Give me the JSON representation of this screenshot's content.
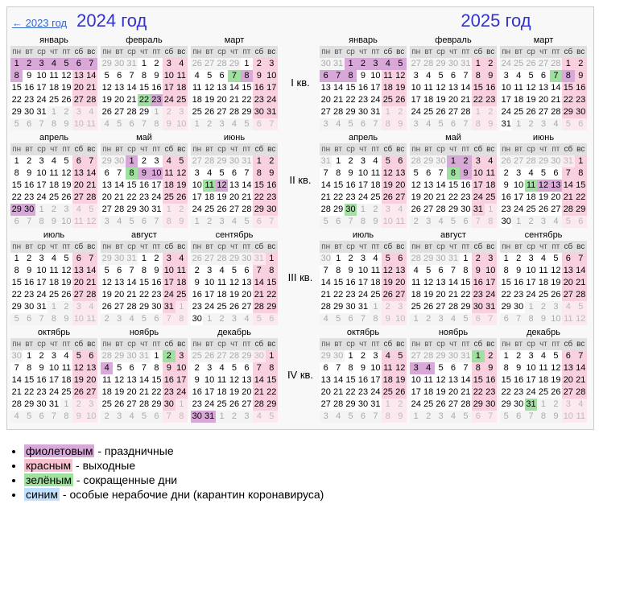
{
  "prev_link": "← 2023 год",
  "year_labels": [
    "2024 год",
    "2025 год"
  ],
  "weekday_headers": [
    "пн",
    "вт",
    "ср",
    "чт",
    "пт",
    "сб",
    "вс"
  ],
  "quarter_labels": [
    "I кв.",
    "II кв.",
    "III кв.",
    "IV кв."
  ],
  "legend": {
    "violet_word": "фиолетовым",
    "violet_rest": " - праздничные",
    "red_word": "красным",
    "red_rest": " - выходные",
    "green_word": "зелёным",
    "green_rest": " - сокращенные дни",
    "blue_word": "синим",
    "blue_rest": " - особые нерабочие дни (карантин коронавируса)"
  },
  "years": [
    {
      "year": 2024,
      "months": [
        {
          "name": "январь",
          "firstDow": 1,
          "days": 31,
          "prevDays": 31,
          "holidays": [
            1,
            2,
            3,
            4,
            5,
            6,
            7,
            8
          ],
          "short": []
        },
        {
          "name": "февраль",
          "firstDow": 4,
          "days": 29,
          "prevDays": 31,
          "holidays": [
            23
          ],
          "short": [
            22
          ]
        },
        {
          "name": "март",
          "firstDow": 5,
          "days": 31,
          "prevDays": 29,
          "holidays": [
            8
          ],
          "short": [
            7
          ]
        },
        {
          "name": "апрель",
          "firstDow": 1,
          "days": 30,
          "prevDays": 31,
          "holidays": [
            29,
            30
          ],
          "short": []
        },
        {
          "name": "май",
          "firstDow": 3,
          "days": 31,
          "prevDays": 30,
          "holidays": [
            1,
            9,
            10
          ],
          "short": [
            8
          ]
        },
        {
          "name": "июнь",
          "firstDow": 6,
          "days": 30,
          "prevDays": 31,
          "holidays": [
            12
          ],
          "short": [
            11
          ]
        },
        {
          "name": "июль",
          "firstDow": 1,
          "days": 31,
          "prevDays": 30,
          "holidays": [],
          "short": []
        },
        {
          "name": "август",
          "firstDow": 4,
          "days": 31,
          "prevDays": 31,
          "holidays": [],
          "short": []
        },
        {
          "name": "сентябрь",
          "firstDow": 7,
          "days": 30,
          "prevDays": 31,
          "holidays": [],
          "short": []
        },
        {
          "name": "октябрь",
          "firstDow": 2,
          "days": 31,
          "prevDays": 30,
          "holidays": [],
          "short": []
        },
        {
          "name": "ноябрь",
          "firstDow": 5,
          "days": 30,
          "prevDays": 31,
          "holidays": [
            4
          ],
          "short": [
            2
          ]
        },
        {
          "name": "декабрь",
          "firstDow": 7,
          "days": 31,
          "prevDays": 30,
          "holidays": [
            30,
            31
          ],
          "short": []
        }
      ]
    },
    {
      "year": 2025,
      "months": [
        {
          "name": "январь",
          "firstDow": 3,
          "days": 31,
          "prevDays": 31,
          "holidays": [
            1,
            2,
            3,
            4,
            5,
            6,
            7,
            8
          ],
          "short": []
        },
        {
          "name": "февраль",
          "firstDow": 6,
          "days": 28,
          "prevDays": 31,
          "holidays": [],
          "short": []
        },
        {
          "name": "март",
          "firstDow": 6,
          "days": 31,
          "prevDays": 28,
          "holidays": [
            8
          ],
          "short": [
            7
          ]
        },
        {
          "name": "апрель",
          "firstDow": 2,
          "days": 30,
          "prevDays": 31,
          "holidays": [],
          "short": [
            30
          ]
        },
        {
          "name": "май",
          "firstDow": 4,
          "days": 31,
          "prevDays": 30,
          "holidays": [
            1,
            2,
            9
          ],
          "short": [
            8
          ]
        },
        {
          "name": "июнь",
          "firstDow": 7,
          "days": 30,
          "prevDays": 31,
          "holidays": [
            12,
            13
          ],
          "short": [
            11
          ]
        },
        {
          "name": "июль",
          "firstDow": 2,
          "days": 31,
          "prevDays": 30,
          "holidays": [],
          "short": []
        },
        {
          "name": "август",
          "firstDow": 5,
          "days": 31,
          "prevDays": 31,
          "holidays": [],
          "short": []
        },
        {
          "name": "сентябрь",
          "firstDow": 1,
          "days": 30,
          "prevDays": 31,
          "holidays": [],
          "short": []
        },
        {
          "name": "октябрь",
          "firstDow": 3,
          "days": 31,
          "prevDays": 30,
          "holidays": [],
          "short": []
        },
        {
          "name": "ноябрь",
          "firstDow": 6,
          "days": 30,
          "prevDays": 31,
          "holidays": [
            3,
            4
          ],
          "short": [
            1
          ]
        },
        {
          "name": "декабрь",
          "firstDow": 1,
          "days": 31,
          "prevDays": 30,
          "holidays": [],
          "short": [
            31
          ]
        }
      ]
    }
  ],
  "colors": {
    "holiday": "#d8a8d8",
    "weekend": "#f9d0e0",
    "short": "#a0e0a0",
    "special": "#bfe0ff",
    "out": "#f4f4f4",
    "header": "#e0e0e0"
  }
}
